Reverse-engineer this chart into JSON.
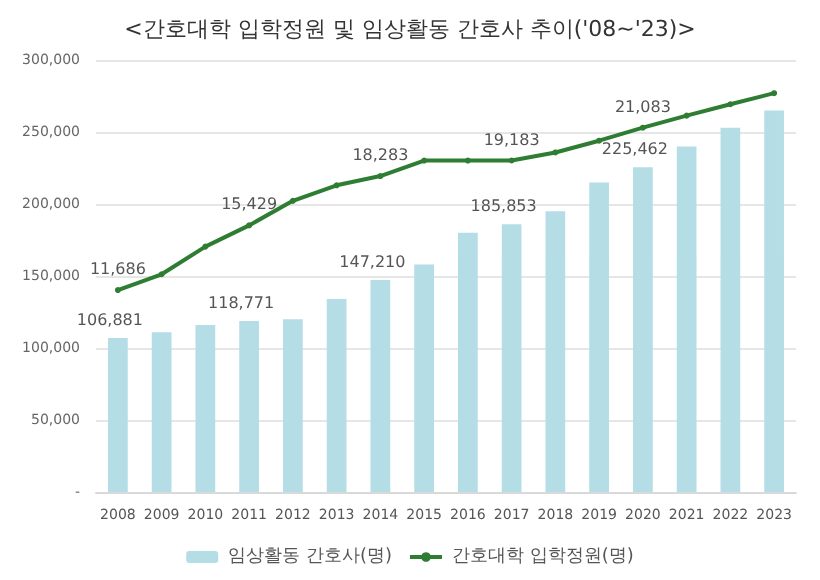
{
  "chart_data": {
    "type": "bar",
    "title": "<간호대학 입학정원 및 임상활동 간호사 추이('08~'23)>",
    "categories": [
      "2008",
      "2009",
      "2010",
      "2011",
      "2012",
      "2013",
      "2014",
      "2015",
      "2016",
      "2017",
      "2018",
      "2019",
      "2020",
      "2021",
      "2022",
      "2023"
    ],
    "series": [
      {
        "name": "임상활동 간호사(명)",
        "color": "#b4dde6",
        "values": [
          106881,
          111000,
          116000,
          118771,
          120000,
          134000,
          147210,
          158000,
          180000,
          185853,
          195000,
          215000,
          225462,
          240000,
          253000,
          265000
        ],
        "value_labels": [
          "106,881",
          null,
          null,
          "118,771",
          null,
          null,
          "147,210",
          null,
          null,
          "185,853",
          null,
          null,
          "225,462",
          null,
          null,
          null
        ]
      },
      {
        "name": "간호대학 입학정원(명)",
        "type": "line",
        "axis": "y2",
        "color": "#2e7d32",
        "values": [
          11686,
          12600,
          14200,
          15429,
          16850,
          17750,
          18283,
          19180,
          19180,
          19183,
          19650,
          20330,
          21083,
          21780,
          22440,
          23080
        ],
        "value_labels": [
          "11,686",
          null,
          null,
          "15,429",
          null,
          null,
          "18,283",
          null,
          null,
          "19,183",
          null,
          null,
          "21,083",
          null,
          null,
          null
        ]
      }
    ],
    "ylim": [
      0,
      300000
    ],
    "yticks": [
      {
        "value": 0,
        "label": "-"
      },
      {
        "value": 50000,
        "label": "50,000"
      },
      {
        "value": 100000,
        "label": "100,000"
      },
      {
        "value": 150000,
        "label": "150,000"
      },
      {
        "value": 200000,
        "label": "200,000"
      },
      {
        "value": 250000,
        "label": "250,000"
      },
      {
        "value": 300000,
        "label": "300,000"
      }
    ],
    "y2lim": [
      0,
      25000
    ],
    "grid": "y",
    "legend": "bottom",
    "marker": "circle",
    "tick_labels": "x"
  }
}
